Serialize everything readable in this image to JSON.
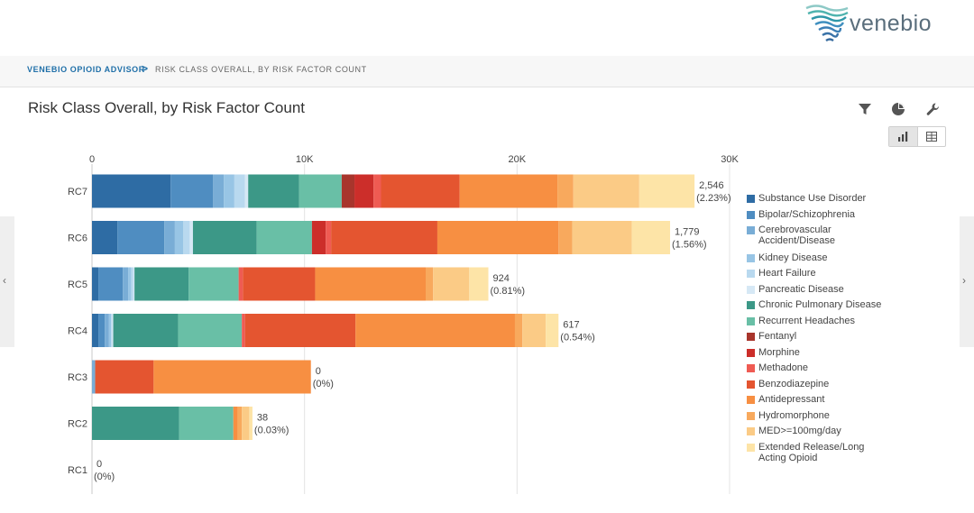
{
  "header": {
    "logo_text": "venebio"
  },
  "breadcrumb": {
    "root": "VENEBIO OPIOID ADVISOR",
    "separator": ">",
    "current": "RISK CLASS OVERALL, BY RISK FACTOR COUNT"
  },
  "page_title": "Risk Class Overall, by Risk Factor Count",
  "toolbar": {
    "filter_icon": "filter-icon",
    "pie_icon": "pie-chart-icon",
    "settings_icon": "wrench-icon"
  },
  "view_toggle": {
    "active": "bar",
    "options": [
      "bar-chart-icon",
      "table-icon"
    ]
  },
  "nav": {
    "prev_label": "‹",
    "next_label": "›"
  },
  "chart_data": {
    "type": "bar",
    "orientation": "horizontal",
    "stacked": true,
    "title": "Risk Class Overall, by Risk Factor Count",
    "xlabel": "",
    "ylabel": "",
    "xlim": [
      0,
      30000
    ],
    "x_ticks": [
      0,
      10000,
      20000,
      30000
    ],
    "x_tick_labels": [
      "0",
      "10K",
      "20K",
      "30K"
    ],
    "grid": true,
    "legend_position": "right",
    "categories": [
      "RC7",
      "RC6",
      "RC5",
      "RC4",
      "RC3",
      "RC2",
      "RC1"
    ],
    "end_labels": [
      {
        "count": "2,546",
        "pct": "(2.23%)"
      },
      {
        "count": "1,779",
        "pct": "(1.56%)"
      },
      {
        "count": "924",
        "pct": "(0.81%)"
      },
      {
        "count": "617",
        "pct": "(0.54%)"
      },
      {
        "count": "0",
        "pct": "(0%)"
      },
      {
        "count": "38",
        "pct": "(0.03%)"
      },
      {
        "count": "0",
        "pct": "(0%)"
      }
    ],
    "series": [
      {
        "name": "Substance Use Disorder",
        "color": "#2e6ca4",
        "values": [
          3700,
          1200,
          300,
          300,
          0,
          0,
          0
        ]
      },
      {
        "name": "Bipolar/Schizophrenia",
        "color": "#4f8dc1",
        "values": [
          2000,
          2200,
          1150,
          300,
          0,
          0,
          0
        ]
      },
      {
        "name": "Cerebrovascular Accident/Disease",
        "color": "#79add6",
        "values": [
          500,
          500,
          250,
          200,
          150,
          0,
          0
        ]
      },
      {
        "name": "Kidney Disease",
        "color": "#98c5e5",
        "values": [
          500,
          400,
          150,
          100,
          0,
          0,
          0
        ]
      },
      {
        "name": "Heart Failure",
        "color": "#b9d9ef",
        "values": [
          500,
          300,
          100,
          50,
          0,
          0,
          0
        ]
      },
      {
        "name": "Pancreatic Disease",
        "color": "#d6e8f5",
        "values": [
          150,
          150,
          50,
          50,
          0,
          0,
          0
        ]
      },
      {
        "name": "Chronic Pulmonary Disease",
        "color": "#3c9887",
        "values": [
          2400,
          3000,
          2550,
          3050,
          0,
          4100,
          0
        ]
      },
      {
        "name": "Recurrent Headaches",
        "color": "#69bfa6",
        "values": [
          2000,
          2600,
          2350,
          3000,
          0,
          2550,
          0
        ]
      },
      {
        "name": "Fentanyl",
        "color": "#a8352c",
        "values": [
          600,
          0,
          0,
          0,
          0,
          0,
          0
        ]
      },
      {
        "name": "Morphine",
        "color": "#cc2e2a",
        "values": [
          900,
          650,
          0,
          0,
          0,
          0,
          0
        ]
      },
      {
        "name": "Methadone",
        "color": "#ef5b53",
        "values": [
          350,
          250,
          200,
          150,
          0,
          0,
          0
        ]
      },
      {
        "name": "Benzodiazepine",
        "color": "#e45530",
        "values": [
          3700,
          5000,
          3400,
          5200,
          2750,
          0,
          0
        ]
      },
      {
        "name": "Antidepressant",
        "color": "#f78f42",
        "values": [
          4600,
          5700,
          5200,
          7500,
          7400,
          200,
          0
        ]
      },
      {
        "name": "Hydromorphone",
        "color": "#f8a95d",
        "values": [
          750,
          650,
          350,
          350,
          0,
          200,
          0
        ]
      },
      {
        "name": "MED>=100mg/day",
        "color": "#fbcb86",
        "values": [
          3100,
          2800,
          1700,
          1100,
          0,
          350,
          0
        ]
      },
      {
        "name": "Extended Release/Long Acting Opioid",
        "color": "#fde4a7",
        "values": [
          2600,
          1800,
          900,
          600,
          0,
          150,
          0
        ]
      }
    ]
  }
}
